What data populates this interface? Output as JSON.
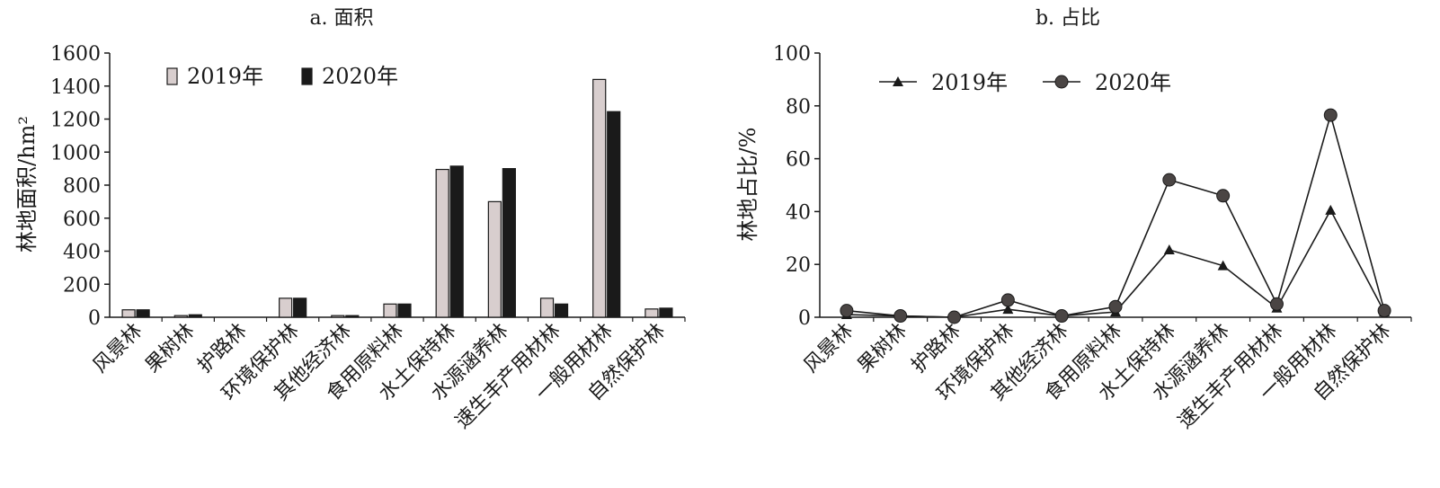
{
  "chart_data": [
    {
      "panel": "a",
      "type": "bar",
      "title": "a. 面积",
      "ylabel": "林地面积/hm²",
      "ylim": [
        0,
        1600
      ],
      "yticks": [
        0,
        200,
        400,
        600,
        800,
        1000,
        1200,
        1400,
        1600
      ],
      "grid": false,
      "legend_placement": "top-left",
      "categories": [
        "风景林",
        "果树林",
        "护路林",
        "环境保护林",
        "其他经济林",
        "食用原料林",
        "水土保持林",
        "水源涵养林",
        "速生丰产用材林",
        "一般用材林",
        "自然保护林"
      ],
      "series": [
        {
          "name": "2019年",
          "color": "#d8cece",
          "values": [
            45,
            10,
            0,
            115,
            10,
            80,
            895,
            700,
            115,
            1440,
            50
          ]
        },
        {
          "name": "2020年",
          "color": "#1a1a1a",
          "values": [
            45,
            15,
            0,
            115,
            10,
            80,
            915,
            900,
            80,
            1245,
            55
          ]
        }
      ]
    },
    {
      "panel": "b",
      "type": "line",
      "title": "b. 占比",
      "ylabel": "林地占比/%",
      "ylim": [
        0,
        100
      ],
      "yticks": [
        0,
        20,
        40,
        60,
        80,
        100
      ],
      "grid": false,
      "legend_placement": "top-left",
      "categories": [
        "风景林",
        "果树林",
        "护路林",
        "环境保护林",
        "其他经济林",
        "食用原料林",
        "水土保持林",
        "水源涵养林",
        "速生丰产用材林",
        "一般用材林",
        "自然保护林"
      ],
      "series": [
        {
          "name": "2019年",
          "marker": "triangle",
          "color": "#1a1a1a",
          "values": [
            1,
            0.5,
            0,
            3,
            0.5,
            2,
            25.5,
            19.5,
            3.5,
            40.5,
            2
          ]
        },
        {
          "name": "2020年",
          "marker": "circle",
          "color": "#4a4544",
          "values": [
            2.5,
            0.5,
            0,
            6.5,
            0.5,
            4,
            52,
            46,
            5,
            76.5,
            2.5
          ]
        }
      ]
    }
  ]
}
